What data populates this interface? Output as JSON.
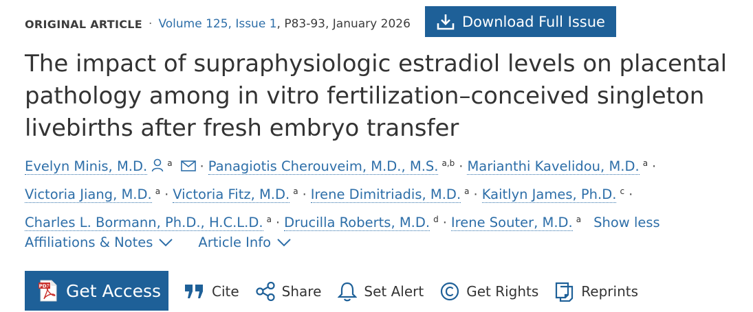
{
  "header": {
    "article_type": "ORIGINAL ARTICLE",
    "separator": "·",
    "volume_issue": "Volume 125, Issue 1",
    "pages_date": ", P83-93, January 2026",
    "download_label": "Download Full Issue"
  },
  "title": "The impact of supraphysiologic estradiol levels on placental pathology among in vitro fertilization–conceived singleton livebirths after fresh embryo transfer",
  "authors": [
    {
      "name": "Evelyn Minis, M.D.",
      "aff": "a"
    },
    {
      "name": "Panagiotis Cherouveim, M.D., M.S.",
      "aff": "a,b"
    },
    {
      "name": "Marianthi Kavelidou, M.D.",
      "aff": "a"
    },
    {
      "name": "Victoria Jiang, M.D.",
      "aff": "a"
    },
    {
      "name": "Victoria Fitz, M.D.",
      "aff": "a"
    },
    {
      "name": "Irene Dimitriadis, M.D.",
      "aff": "a"
    },
    {
      "name": "Kaitlyn James, Ph.D.",
      "aff": "c"
    },
    {
      "name": "Charles L. Bormann, Ph.D., H.C.L.D.",
      "aff": "a"
    },
    {
      "name": "Drucilla Roberts, M.D.",
      "aff": "d"
    },
    {
      "name": "Irene Souter, M.D.",
      "aff": "a"
    }
  ],
  "author_separator": "·",
  "show_less": "Show less",
  "expanders": {
    "affiliations": "Affiliations & Notes",
    "article_info": "Article Info"
  },
  "access": {
    "label": "Get Access"
  },
  "actions": {
    "cite": "Cite",
    "share": "Share",
    "alert": "Set Alert",
    "rights": "Get Rights",
    "reprints": "Reprints"
  },
  "icons": {
    "download": "download-icon",
    "person": "person-icon",
    "email": "envelope-icon",
    "chevron": "chevron-down-icon",
    "pdf": "pdf-icon",
    "cite": "quote-icon",
    "share": "share-icon",
    "alert": "bell-icon",
    "rights": "copyright-icon",
    "reprints": "reprints-icon"
  },
  "colors": {
    "brand": "#1e6098",
    "link": "#2d6ea8",
    "text": "#333333"
  }
}
